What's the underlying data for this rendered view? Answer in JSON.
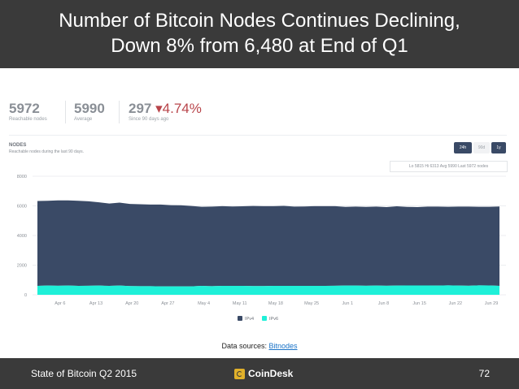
{
  "title": {
    "line1": "Number of Bitcoin Nodes Continues Declining,",
    "line2": "Down 8% from 6,480 at End of Q1"
  },
  "stats": {
    "reachable_value": "5972",
    "reachable_label": "Reachable nodes",
    "average_value": "5990",
    "average_label": "Average",
    "change_value": "297",
    "change_arrow": "▾",
    "change_pct": "4.74%",
    "change_label": "Since 90 days ago"
  },
  "chart_header": {
    "title": "NODES",
    "subtitle": "Reachable nodes during the last 90 days.",
    "buttons": [
      {
        "label": "24h",
        "active": true
      },
      {
        "label": "90d",
        "active": false
      },
      {
        "label": "1y",
        "active": true
      }
    ],
    "range_text": "Lo 5815  Hi 6313  Avg 5990  Last 5972 nodes"
  },
  "colors": {
    "ipv4": "#3a4a66",
    "ipv6": "#1ff0d8",
    "band": "#3a3a3a",
    "logo": "#e0b02a"
  },
  "chart_data": {
    "type": "area",
    "stacked": true,
    "ylim": [
      0,
      8000
    ],
    "yticks": [
      "0",
      "2000",
      "4000",
      "6000",
      "8000"
    ],
    "ytick_values": [
      0,
      2000,
      4000,
      6000,
      8000
    ],
    "x_ticks": [
      "Apr 6",
      "Apr 13",
      "Apr 20",
      "Apr 27",
      "May 4",
      "May 11",
      "May 18",
      "May 25",
      "Jun 1",
      "Jun 8",
      "Jun 15",
      "Jun 22",
      "Jun 29"
    ],
    "x_range": [
      0,
      90
    ],
    "x_tick_positions": [
      6,
      13,
      20,
      27,
      34,
      41,
      48,
      55,
      62,
      69,
      76,
      83,
      90
    ],
    "series": [
      {
        "name": "IPv4",
        "x": [
          0,
          2,
          4,
          6,
          8,
          10,
          12,
          14,
          16,
          18,
          20,
          22,
          24,
          26,
          28,
          30,
          32,
          34,
          36,
          38,
          40,
          42,
          44,
          46,
          48,
          50,
          52,
          54,
          56,
          58,
          60,
          62,
          64,
          66,
          68,
          70,
          72,
          74,
          76,
          78,
          80,
          82,
          84,
          86,
          88,
          90
        ],
        "values": [
          5730,
          5720,
          5760,
          5750,
          5740,
          5700,
          5620,
          5560,
          5600,
          5540,
          5530,
          5510,
          5520,
          5480,
          5470,
          5420,
          5340,
          5370,
          5380,
          5360,
          5370,
          5400,
          5390,
          5380,
          5400,
          5350,
          5360,
          5380,
          5380,
          5370,
          5310,
          5330,
          5320,
          5330,
          5310,
          5350,
          5300,
          5290,
          5320,
          5330,
          5300,
          5330,
          5340,
          5300,
          5310,
          5360
        ]
      },
      {
        "name": "IPv6",
        "x": [
          0,
          2,
          4,
          6,
          8,
          10,
          12,
          14,
          16,
          18,
          20,
          22,
          24,
          26,
          28,
          30,
          32,
          34,
          36,
          38,
          40,
          42,
          44,
          46,
          48,
          50,
          52,
          54,
          56,
          58,
          60,
          62,
          64,
          66,
          68,
          70,
          72,
          74,
          76,
          78,
          80,
          82,
          84,
          86,
          88,
          90
        ],
        "values": [
          600,
          620,
          610,
          620,
          600,
          610,
          620,
          600,
          620,
          590,
          580,
          580,
          570,
          570,
          570,
          570,
          600,
          580,
          600,
          600,
          600,
          590,
          590,
          600,
          600,
          600,
          600,
          600,
          600,
          610,
          620,
          620,
          610,
          620,
          610,
          620,
          630,
          630,
          630,
          620,
          640,
          620,
          610,
          640,
          630,
          600
        ]
      }
    ],
    "legend": [
      "IPv4",
      "IPv6"
    ]
  },
  "source": {
    "prefix": "Data sources: ",
    "link": "Bitnodes"
  },
  "footer": {
    "left": "State of Bitcoin Q2 2015",
    "logo": "CoinDesk",
    "page": "72"
  }
}
